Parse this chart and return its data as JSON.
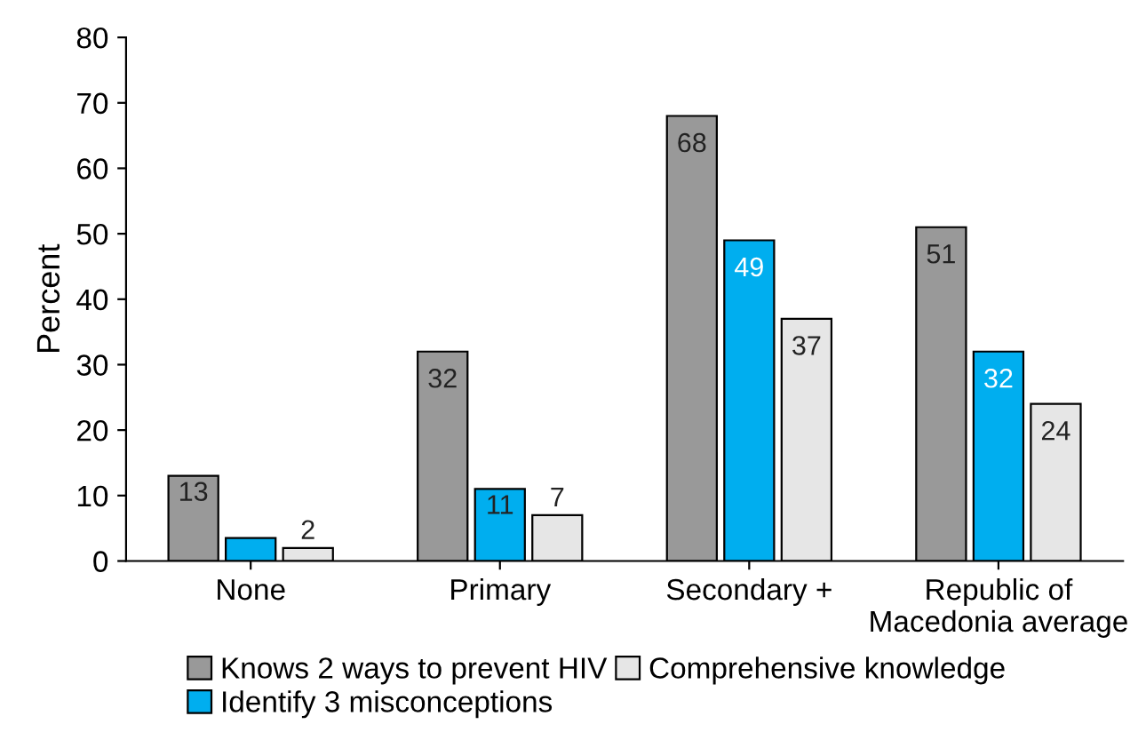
{
  "chart_data": {
    "type": "bar",
    "ylabel": "Percent",
    "categories": [
      "None",
      "Primary",
      "Secondary +",
      "Republic of\nMacedonia average"
    ],
    "series": [
      {
        "name": "Knows 2 ways to prevent HIV",
        "color": "#999999",
        "values": [
          13,
          32,
          68,
          51
        ],
        "value_labels": [
          "13",
          "32",
          "68",
          "51"
        ]
      },
      {
        "name": "Identify 3 misconceptions",
        "color": "#00aeef",
        "values": [
          3.5,
          11,
          49,
          32
        ],
        "value_labels": [
          null,
          "11",
          "49",
          "32"
        ]
      },
      {
        "name": "Comprehensive knowledge",
        "color": "#e6e6e6",
        "values": [
          2,
          7,
          37,
          24
        ],
        "value_labels": [
          "2",
          "7",
          "37",
          "24"
        ]
      }
    ],
    "ylim": [
      0,
      80
    ],
    "yticks": [
      0,
      10,
      20,
      30,
      40,
      50,
      60,
      70,
      80
    ],
    "grid": false,
    "legend": "bottom"
  }
}
